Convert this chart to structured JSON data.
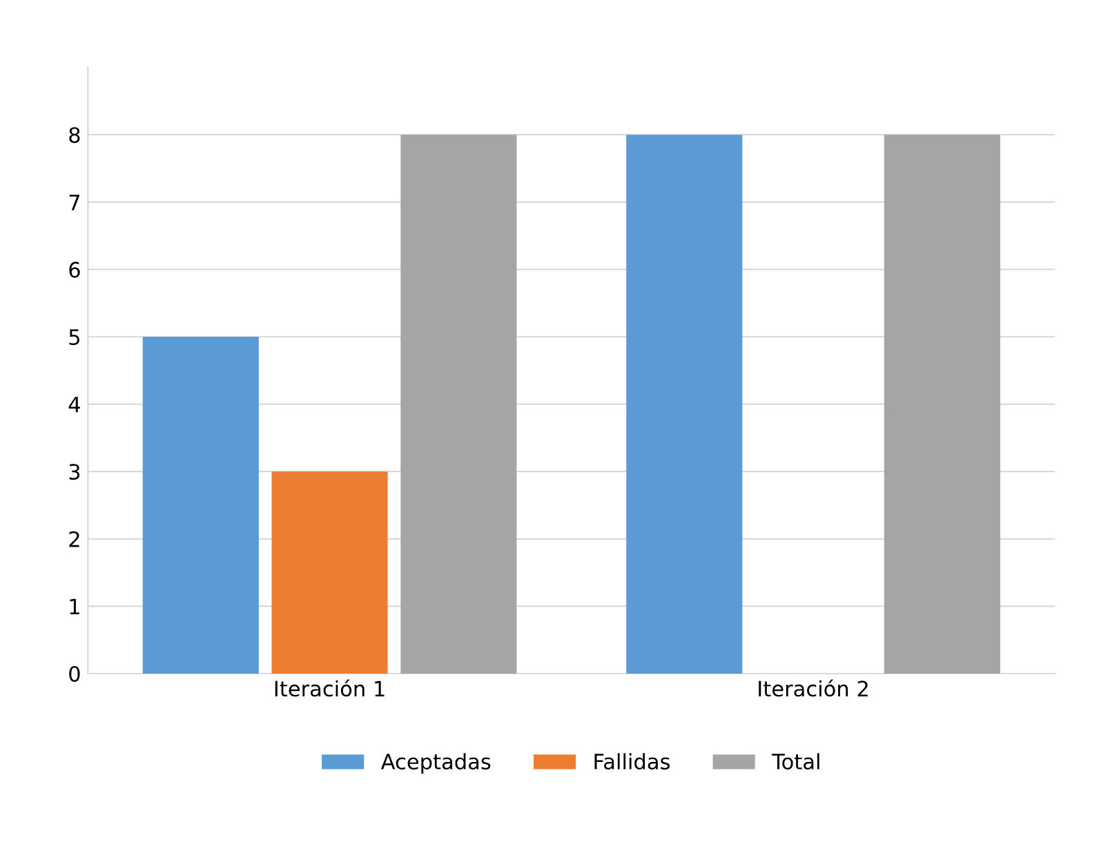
{
  "chart_data": {
    "type": "bar",
    "categories": [
      "Iteración 1",
      "Iteración 2"
    ],
    "series": [
      {
        "name": "Aceptadas",
        "color": "#5b9bd5",
        "values": [
          5,
          8
        ]
      },
      {
        "name": "Fallidas",
        "color": "#ed7d31",
        "values": [
          3,
          0
        ]
      },
      {
        "name": "Total",
        "color": "#a5a5a5",
        "values": [
          8,
          8
        ]
      }
    ],
    "ylim": [
      0,
      9
    ],
    "yticks": [
      0,
      1,
      2,
      3,
      4,
      5,
      6,
      7,
      8
    ],
    "grid": "y",
    "legend": "bottom"
  }
}
